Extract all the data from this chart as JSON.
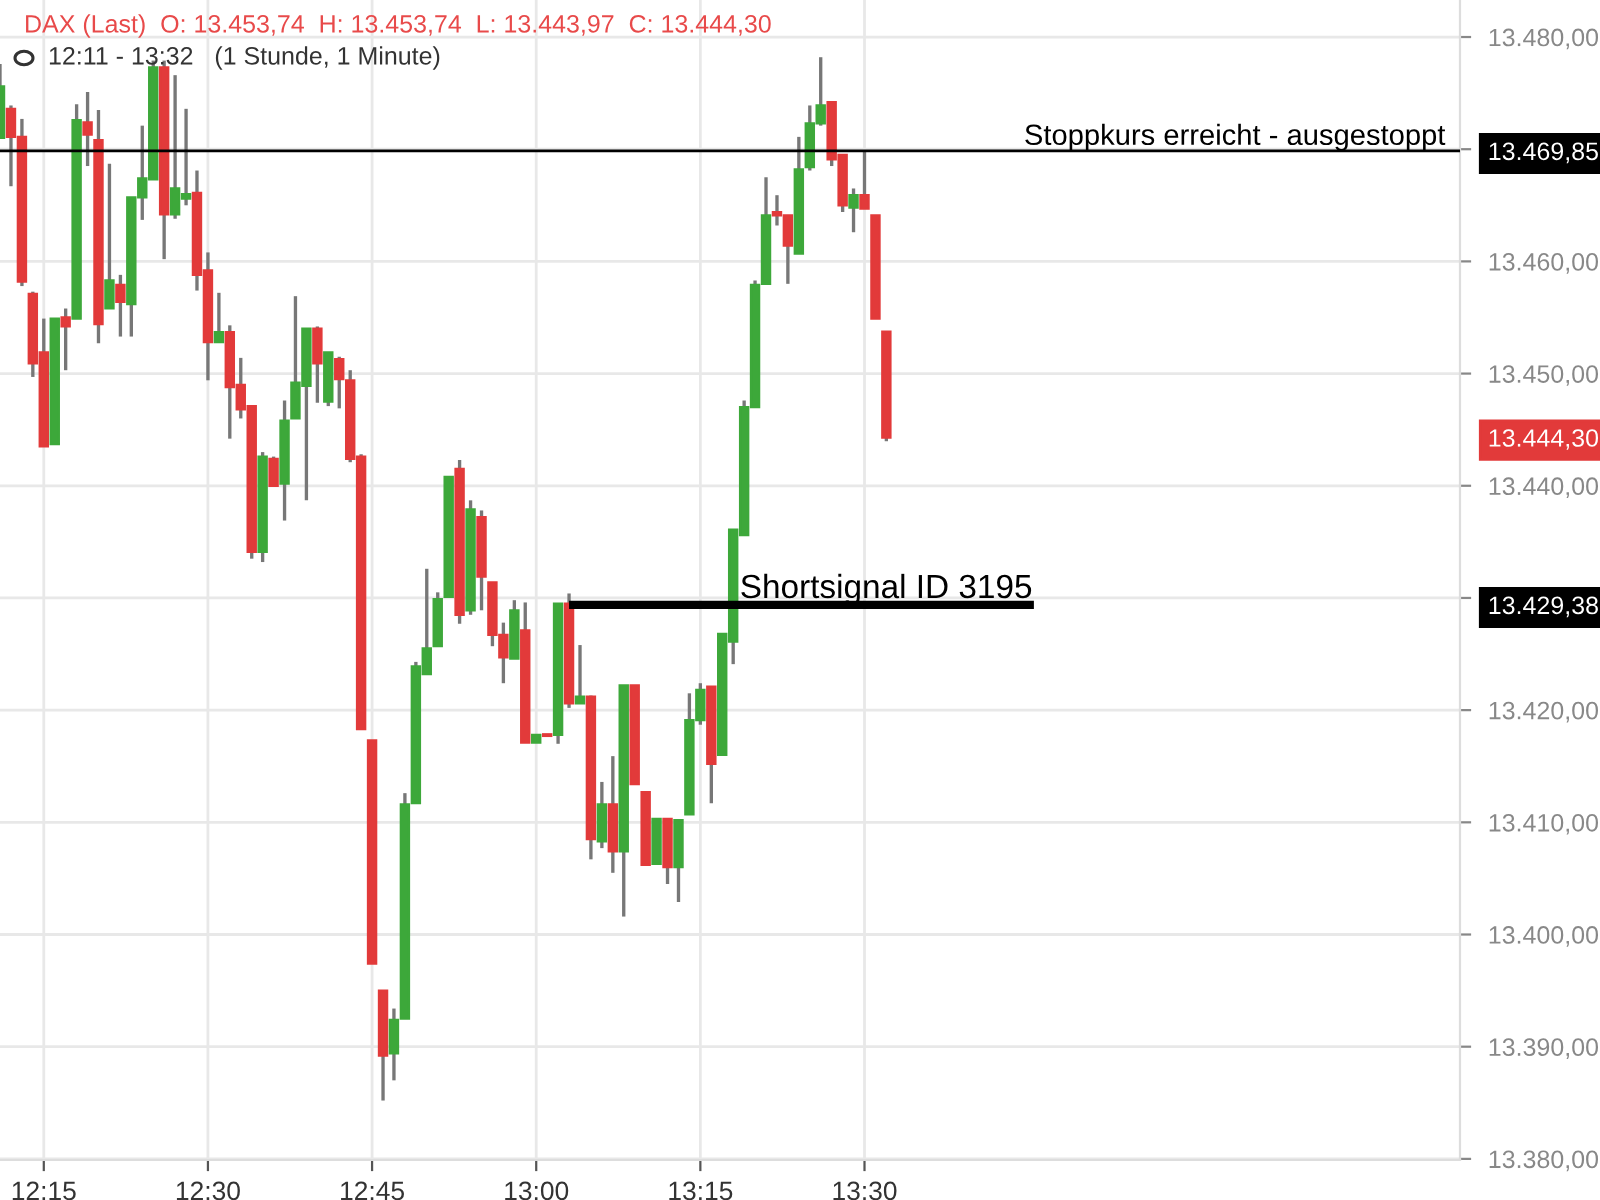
{
  "chart_data": {
    "type": "candlestick",
    "title": "DAX (Last)  O: 13.453,74  H: 13.453,74  L: 13.443,97  C: 13.444,30",
    "subtitle": "12:11 - 13:32   (1 Stunde, 1 Minute)",
    "x": [
      12.1833,
      12.2,
      12.2167,
      12.2333,
      12.25,
      12.2667,
      12.2833,
      12.3,
      12.3167,
      12.3333,
      12.35,
      12.3667,
      12.3833,
      12.4,
      12.4167,
      12.4333,
      12.45,
      12.4667,
      12.4833,
      12.5,
      12.5167,
      12.5333,
      12.55,
      12.5667,
      12.5833,
      12.6,
      12.6167,
      12.6333,
      12.65,
      12.6667,
      12.6833,
      12.7,
      12.7167,
      12.7333,
      12.75,
      12.7667,
      12.7833,
      12.8,
      12.8167,
      12.8333,
      12.85,
      12.8667,
      12.8833,
      12.9,
      12.9167,
      12.9333,
      12.95,
      12.9667,
      12.9833,
      13.0,
      13.0167,
      13.0333,
      13.05,
      13.0667,
      13.0833,
      13.1,
      13.1167,
      13.1333,
      13.15,
      13.1667,
      13.1833,
      13.2,
      13.2167,
      13.2333,
      13.25,
      13.2667,
      13.2833,
      13.3,
      13.3167,
      13.3333,
      13.35,
      13.3667,
      13.3833,
      13.4,
      13.4167,
      13.4333,
      13.45,
      13.4667,
      13.4833,
      13.5,
      13.5167,
      13.5333
    ],
    "ohlc": [
      [
        13471.0,
        13477.6,
        13471.0,
        13475.6
      ],
      [
        13473.6,
        13473.9,
        13466.7,
        13471.1
      ],
      [
        13471.1,
        13472.7,
        13457.8,
        13458.2
      ],
      [
        13457.1,
        13457.3,
        13449.7,
        13450.9
      ],
      [
        13451.9,
        13454.9,
        13443.5,
        13443.5
      ],
      [
        13443.7,
        13454.9,
        13443.7,
        13454.9
      ],
      [
        13455.0,
        13455.8,
        13450.3,
        13454.2
      ],
      [
        13454.9,
        13474.0,
        13454.9,
        13472.6
      ],
      [
        13472.4,
        13475.1,
        13468.5,
        13471.3
      ],
      [
        13470.8,
        13473.5,
        13452.7,
        13454.4
      ],
      [
        13455.8,
        13468.7,
        13455.8,
        13458.3
      ],
      [
        13457.9,
        13458.8,
        13453.3,
        13456.4
      ],
      [
        13456.2,
        13465.7,
        13453.3,
        13465.7
      ],
      [
        13465.7,
        13472.1,
        13463.7,
        13467.4
      ],
      [
        13467.3,
        13477.9,
        13467.3,
        13477.3
      ],
      [
        13477.3,
        13477.9,
        13460.2,
        13464.2
      ],
      [
        13464.2,
        13476.6,
        13463.8,
        13466.5
      ],
      [
        13465.6,
        13473.6,
        13465.0,
        13466.0
      ],
      [
        13466.1,
        13468.1,
        13457.4,
        13458.8
      ],
      [
        13459.2,
        13460.8,
        13449.4,
        13452.8
      ],
      [
        13452.8,
        13457.2,
        13452.8,
        13453.7
      ],
      [
        13453.7,
        13454.3,
        13444.2,
        13448.8
      ],
      [
        13449.0,
        13451.4,
        13446.0,
        13446.8
      ],
      [
        13447.1,
        13447.1,
        13433.5,
        13434.1
      ],
      [
        13434.1,
        13443.0,
        13433.2,
        13442.6
      ],
      [
        13442.4,
        13442.6,
        13440.0,
        13440.0
      ],
      [
        13440.2,
        13447.6,
        13436.9,
        13445.8
      ],
      [
        13446.0,
        13456.9,
        13446.0,
        13449.2
      ],
      [
        13448.9,
        13454.0,
        13438.7,
        13454.0
      ],
      [
        13454.0,
        13454.2,
        13447.4,
        13450.9
      ],
      [
        13447.5,
        13451.9,
        13447.1,
        13451.9
      ],
      [
        13451.3,
        13451.5,
        13446.9,
        13449.5
      ],
      [
        13449.4,
        13450.3,
        13442.1,
        13442.4
      ],
      [
        13442.6,
        13442.8,
        13418.3,
        13418.3
      ],
      [
        13417.3,
        13417.3,
        13397.4,
        13397.4
      ],
      [
        13395.0,
        13395.0,
        13385.2,
        13389.2
      ],
      [
        13389.4,
        13393.4,
        13387.0,
        13392.4
      ],
      [
        13392.5,
        13412.6,
        13392.5,
        13411.6
      ],
      [
        13411.7,
        13424.3,
        13411.7,
        13423.9
      ],
      [
        13423.2,
        13432.6,
        13423.2,
        13425.5
      ],
      [
        13425.7,
        13430.5,
        13425.7,
        13429.9
      ],
      [
        13430.1,
        13440.8,
        13430.1,
        13440.8
      ],
      [
        13441.5,
        13442.3,
        13427.7,
        13428.5
      ],
      [
        13428.9,
        13438.7,
        13428.5,
        13437.9
      ],
      [
        13437.2,
        13437.8,
        13428.9,
        13431.9
      ],
      [
        13431.4,
        13431.4,
        13425.7,
        13426.7
      ],
      [
        13426.7,
        13427.8,
        13422.4,
        13424.7
      ],
      [
        13424.6,
        13429.8,
        13424.6,
        13428.9
      ],
      [
        13427.1,
        13429.6,
        13417.1,
        13417.1
      ],
      [
        13417.1,
        13417.8,
        13417.1,
        13417.8
      ],
      [
        13417.8,
        13417.8,
        13417.7,
        13417.7
      ],
      [
        13417.8,
        13429.5,
        13417.0,
        13429.5
      ],
      [
        13429.5,
        13430.4,
        13420.2,
        13420.6
      ],
      [
        13420.6,
        13425.8,
        13420.6,
        13421.2
      ],
      [
        13421.2,
        13421.3,
        13406.7,
        13408.5
      ],
      [
        13408.3,
        13413.6,
        13407.7,
        13411.6
      ],
      [
        13411.6,
        13415.9,
        13405.5,
        13407.4
      ],
      [
        13407.4,
        13422.2,
        13401.6,
        13422.2
      ],
      [
        13422.2,
        13422.2,
        13413.4,
        13413.4
      ],
      [
        13412.7,
        13412.7,
        13406.2,
        13406.2
      ],
      [
        13406.3,
        13410.3,
        13406.3,
        13410.3
      ],
      [
        13410.3,
        13410.3,
        13404.5,
        13406.0
      ],
      [
        13406.0,
        13410.2,
        13402.9,
        13410.2
      ],
      [
        13410.7,
        13421.5,
        13410.7,
        13419.1
      ],
      [
        13419.1,
        13422.4,
        13418.7,
        13421.8
      ],
      [
        13422.1,
        13422.1,
        13411.7,
        13415.2
      ],
      [
        13416.0,
        13426.8,
        13416.0,
        13426.8
      ],
      [
        13426.1,
        13436.1,
        13424.1,
        13436.1
      ],
      [
        13435.6,
        13447.6,
        13435.6,
        13447.0
      ],
      [
        13447.0,
        13458.3,
        13447.0,
        13457.9
      ],
      [
        13458.0,
        13467.5,
        13458.0,
        13464.1
      ],
      [
        13464.4,
        13465.9,
        13463.2,
        13464.1
      ],
      [
        13464.1,
        13464.1,
        13458.0,
        13461.4
      ],
      [
        13460.7,
        13471.1,
        13460.7,
        13468.2
      ],
      [
        13468.4,
        13473.9,
        13468.1,
        13472.3
      ],
      [
        13472.3,
        13478.2,
        13472.1,
        13473.9
      ],
      [
        13474.2,
        13474.2,
        13468.5,
        13469.1
      ],
      [
        13469.5,
        13469.5,
        13464.4,
        13465.0
      ],
      [
        13464.8,
        13466.5,
        13462.6,
        13465.9
      ],
      [
        13465.9,
        13469.9,
        13464.7,
        13464.7
      ],
      [
        13464.1,
        13464.1,
        13454.9,
        13454.9
      ],
      [
        13453.74,
        13453.74,
        13443.97,
        13444.3
      ]
    ],
    "colors": [
      "#3da83a",
      "#e23a3a",
      "#e23a3a",
      "#e23a3a",
      "#e23a3a",
      "#3da83a",
      "#e23a3a",
      "#3da83a",
      "#e23a3a",
      "#e23a3a",
      "#3da83a",
      "#e23a3a",
      "#3da83a",
      "#3da83a",
      "#3da83a",
      "#e23a3a",
      "#3da83a",
      "#3da83a",
      "#e23a3a",
      "#e23a3a",
      "#3da83a",
      "#e23a3a",
      "#e23a3a",
      "#e23a3a",
      "#3da83a",
      "#e23a3a",
      "#3da83a",
      "#3da83a",
      "#3da83a",
      "#e23a3a",
      "#3da83a",
      "#e23a3a",
      "#e23a3a",
      "#e23a3a",
      "#e23a3a",
      "#e23a3a",
      "#3da83a",
      "#3da83a",
      "#3da83a",
      "#3da83a",
      "#3da83a",
      "#3da83a",
      "#e23a3a",
      "#3da83a",
      "#e23a3a",
      "#e23a3a",
      "#e23a3a",
      "#3da83a",
      "#e23a3a",
      "#3da83a",
      "#e23a3a",
      "#3da83a",
      "#e23a3a",
      "#3da83a",
      "#e23a3a",
      "#3da83a",
      "#e23a3a",
      "#3da83a",
      "#e23a3a",
      "#e23a3a",
      "#3da83a",
      "#e23a3a",
      "#3da83a",
      "#3da83a",
      "#3da83a",
      "#e23a3a",
      "#3da83a",
      "#3da83a",
      "#3da83a",
      "#3da83a",
      "#3da83a",
      "#e23a3a",
      "#e23a3a",
      "#3da83a",
      "#3da83a",
      "#3da83a",
      "#e23a3a",
      "#e23a3a",
      "#3da83a",
      "#e23a3a",
      "#e23a3a",
      "#e23a3a"
    ],
    "series": [
      {
        "type": "line",
        "x": [
          13.05,
          13.758
        ],
        "values": [
          13429.38,
          13429.38
        ],
        "color": "#000000"
      }
    ],
    "ref_lines": [
      {
        "axis": "y",
        "value": 13469.85,
        "label": "Stoppkurs erreicht - ausgestoppt",
        "color": "#000000"
      }
    ],
    "annotations": [
      {
        "text": "Shortsignal ID 3195",
        "x": 13.31,
        "y": 13429.38
      }
    ],
    "xlim": [
      12.1833,
      14.407
    ],
    "xticks": [
      {
        "value": 12.25,
        "label": "12:15"
      },
      {
        "value": 12.5,
        "label": "12:30"
      },
      {
        "value": 12.75,
        "label": "12:45"
      },
      {
        "value": 13.0,
        "label": "13:00"
      },
      {
        "value": 13.25,
        "label": "13:15"
      },
      {
        "value": 13.5,
        "label": "13:30"
      }
    ],
    "ylim": [
      13379.9,
      13483.3
    ],
    "yticks": [
      {
        "value": 13380,
        "label": "13.380,00"
      },
      {
        "value": 13390,
        "label": "13.390,00"
      },
      {
        "value": 13400,
        "label": "13.400,00"
      },
      {
        "value": 13410,
        "label": "13.410,00"
      },
      {
        "value": 13420,
        "label": "13.420,00"
      },
      {
        "value": 13429.38,
        "label": "13.429,38"
      },
      {
        "value": 13430,
        "label": null
      },
      {
        "value": 13440,
        "label": "13.440,00"
      },
      {
        "value": 13444.3,
        "label": "13.444,30"
      },
      {
        "value": 13450,
        "label": "13.450,00"
      },
      {
        "value": 13460,
        "label": "13.460,00"
      },
      {
        "value": 13469.85,
        "label": "13.469,85"
      },
      {
        "value": 13470,
        "label": null
      },
      {
        "value": 13480,
        "label": "13.480,00"
      }
    ],
    "grid": true
  }
}
